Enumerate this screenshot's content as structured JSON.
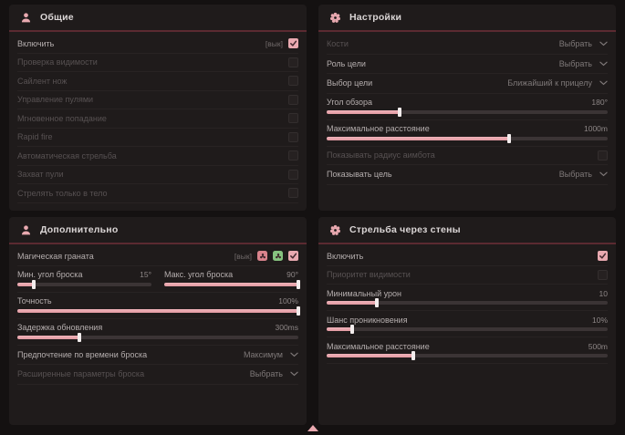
{
  "theme": {
    "page_bg": "#141111",
    "panel_bg": "#1f1b1b",
    "accent_pink": "#e9a9b0",
    "header_divider": "#5b2a31",
    "badge_red": "#d9838c",
    "badge_green": "#86c27f"
  },
  "panels": {
    "general": {
      "title": "Общие",
      "icon": "users-icon",
      "rows": [
        {
          "type": "toggle",
          "label": "Включить",
          "bright": true,
          "keybind": "[вык]",
          "checked": true
        },
        {
          "type": "toggle",
          "label": "Проверка видимости",
          "checked": false
        },
        {
          "type": "toggle",
          "label": "Сайлент нож",
          "checked": false
        },
        {
          "type": "toggle",
          "label": "Управление пулями",
          "checked": false
        },
        {
          "type": "toggle",
          "label": "Мгновенное попадание",
          "checked": false
        },
        {
          "type": "toggle",
          "label": "Rapid fire",
          "checked": false
        },
        {
          "type": "toggle",
          "label": "Автоматическая стрельба",
          "checked": false
        },
        {
          "type": "toggle",
          "label": "Захват пули",
          "checked": false
        },
        {
          "type": "toggle",
          "label": "Стрелять только в тело",
          "checked": false
        }
      ]
    },
    "settings": {
      "title": "Настройки",
      "icon": "gear-icon",
      "rows": [
        {
          "type": "select",
          "label": "Кости",
          "value": "Выбрать"
        },
        {
          "type": "select",
          "label": "Роль цели",
          "value": "Выбрать",
          "bright": true
        },
        {
          "type": "select",
          "label": "Выбор цели",
          "value": "Ближайший к прицелу",
          "bright": true
        },
        {
          "type": "slider",
          "label": "Угол обзора",
          "value": "180°",
          "fill": 26,
          "bright": true
        },
        {
          "type": "slider",
          "label": "Максимальное расстояние",
          "value": "1000m",
          "fill": 65,
          "bright": true
        },
        {
          "type": "toggle",
          "label": "Показывать радиус аимбота",
          "checked": false
        },
        {
          "type": "select",
          "label": "Показывать цель",
          "value": "Выбрать",
          "bright": true
        }
      ]
    },
    "additional": {
      "title": "Дополнительно",
      "icon": "users-icon",
      "rows": [
        {
          "type": "toggle",
          "label": "Магическая граната",
          "bright": true,
          "keybind": "[вык]",
          "extra_icons": [
            "flower-icon-red",
            "flower-icon-green"
          ],
          "checked": true
        },
        {
          "type": "slider-pair",
          "sliders": [
            {
              "label": "Мин. угол броска",
              "value": "15°",
              "fill": 12,
              "bright": true
            },
            {
              "label": "Макс. угол броска",
              "value": "90°",
              "fill": 100,
              "bright": true
            }
          ]
        },
        {
          "type": "slider",
          "label": "Точность",
          "value": "100%",
          "fill": 100,
          "bright": true
        },
        {
          "type": "slider",
          "label": "Задержка обновления",
          "value": "300ms",
          "fill": 22,
          "bright": true
        },
        {
          "type": "select",
          "label": "Предпочтение по времени броска",
          "value": "Максимум",
          "bright": true
        },
        {
          "type": "select",
          "label": "Расширенные параметры броска",
          "value": "Выбрать"
        }
      ]
    },
    "walls": {
      "title": "Стрельба через стены",
      "icon": "gear-icon",
      "rows": [
        {
          "type": "toggle",
          "label": "Включить",
          "bright": true,
          "checked": true
        },
        {
          "type": "toggle",
          "label": "Приоритет видимости",
          "checked": false
        },
        {
          "type": "slider",
          "label": "Минимальный урон",
          "value": "10",
          "fill": 18,
          "bright": true
        },
        {
          "type": "slider",
          "label": "Шанс проникновения",
          "value": "10%",
          "fill": 9,
          "bright": true
        },
        {
          "type": "slider",
          "label": "Максимальное расстояние",
          "value": "500m",
          "fill": 31,
          "bright": true
        }
      ]
    }
  }
}
